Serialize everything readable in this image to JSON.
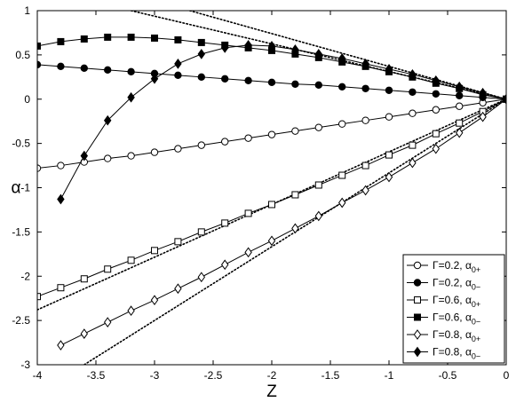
{
  "chart_data": {
    "type": "line",
    "xlabel": "Z",
    "ylabel": "α",
    "xlim": [
      -4,
      0
    ],
    "ylim": [
      -3,
      1
    ],
    "xticks": [
      -4,
      -3.5,
      -3,
      -2.5,
      -2,
      -1.5,
      -1,
      -0.5,
      0
    ],
    "yticks": [
      -3,
      -2.5,
      -2,
      -1.5,
      -1,
      -0.5,
      0,
      0.5,
      1
    ],
    "xtick_labels": [
      "-4",
      "-3.5",
      "-3",
      "-2.5",
      "-2",
      "-1.5",
      "-1",
      "-0.5",
      "0"
    ],
    "ytick_labels": [
      "-3",
      "-2.5",
      "-2",
      "-1.5",
      "-1",
      "-0.5",
      "0",
      "0.5",
      "1"
    ],
    "grid": false,
    "legend_position": "bottom-right",
    "series": [
      {
        "name": "Γ=0.2, α_{0+}",
        "legend_main": "Γ=0.2, α",
        "legend_sub": "0+",
        "marker": "circle-open",
        "x": [
          -4,
          -3.8,
          -3.6,
          -3.4,
          -3.2,
          -3.0,
          -2.8,
          -2.6,
          -2.4,
          -2.2,
          -2.0,
          -1.8,
          -1.6,
          -1.4,
          -1.2,
          -1.0,
          -0.8,
          -0.6,
          -0.4,
          -0.2,
          0
        ],
        "y": [
          -0.78,
          -0.75,
          -0.71,
          -0.67,
          -0.64,
          -0.6,
          -0.56,
          -0.52,
          -0.48,
          -0.44,
          -0.4,
          -0.36,
          -0.32,
          -0.28,
          -0.24,
          -0.2,
          -0.16,
          -0.12,
          -0.08,
          -0.04,
          0
        ]
      },
      {
        "name": "Γ=0.2, α_{0−}",
        "legend_main": "Γ=0.2, α",
        "legend_sub": "0−",
        "marker": "circle-filled",
        "x": [
          -4,
          -3.8,
          -3.6,
          -3.4,
          -3.2,
          -3.0,
          -2.8,
          -2.6,
          -2.4,
          -2.2,
          -2.0,
          -1.8,
          -1.6,
          -1.4,
          -1.2,
          -1.0,
          -0.8,
          -0.6,
          -0.4,
          -0.2,
          0
        ],
        "y": [
          0.39,
          0.37,
          0.35,
          0.33,
          0.31,
          0.29,
          0.27,
          0.25,
          0.23,
          0.21,
          0.19,
          0.17,
          0.16,
          0.14,
          0.12,
          0.1,
          0.08,
          0.06,
          0.04,
          0.02,
          0
        ]
      },
      {
        "name": "Γ=0.6, α_{0+}",
        "legend_main": "Γ=0.6, α",
        "legend_sub": "0+",
        "marker": "square-open",
        "x": [
          -4,
          -3.8,
          -3.6,
          -3.4,
          -3.2,
          -3.0,
          -2.8,
          -2.6,
          -2.4,
          -2.2,
          -2.0,
          -1.8,
          -1.6,
          -1.4,
          -1.2,
          -1.0,
          -0.8,
          -0.6,
          -0.4,
          -0.2,
          0
        ],
        "y": [
          -2.23,
          -2.13,
          -2.03,
          -1.92,
          -1.82,
          -1.71,
          -1.61,
          -1.5,
          -1.4,
          -1.29,
          -1.19,
          -1.08,
          -0.97,
          -0.86,
          -0.75,
          -0.63,
          -0.52,
          -0.39,
          -0.27,
          -0.14,
          0
        ]
      },
      {
        "name": "Γ=0.6, α_{0−}",
        "legend_main": "Γ=0.6, α",
        "legend_sub": "0−",
        "marker": "square-filled",
        "x": [
          -4,
          -3.8,
          -3.6,
          -3.4,
          -3.2,
          -3.0,
          -2.8,
          -2.6,
          -2.4,
          -2.2,
          -2.0,
          -1.8,
          -1.6,
          -1.4,
          -1.2,
          -1.0,
          -0.8,
          -0.6,
          -0.4,
          -0.2,
          0
        ],
        "y": [
          0.6,
          0.65,
          0.68,
          0.7,
          0.7,
          0.69,
          0.67,
          0.64,
          0.61,
          0.58,
          0.55,
          0.51,
          0.47,
          0.42,
          0.37,
          0.31,
          0.25,
          0.18,
          0.12,
          0.05,
          0
        ]
      },
      {
        "name": "Γ=0.8, α_{0+}",
        "legend_main": "Γ=0.8, α",
        "legend_sub": "0+",
        "marker": "diamond-open",
        "x": [
          -3.8,
          -3.6,
          -3.4,
          -3.2,
          -3.0,
          -2.8,
          -2.6,
          -2.4,
          -2.2,
          -2.0,
          -1.8,
          -1.6,
          -1.4,
          -1.2,
          -1.0,
          -0.8,
          -0.6,
          -0.4,
          -0.2,
          0
        ],
        "y": [
          -2.78,
          -2.65,
          -2.52,
          -2.39,
          -2.27,
          -2.14,
          -2.01,
          -1.87,
          -1.73,
          -1.6,
          -1.46,
          -1.32,
          -1.17,
          -1.03,
          -0.88,
          -0.72,
          -0.56,
          -0.38,
          -0.2,
          0
        ]
      },
      {
        "name": "Γ=0.8, α_{0−}",
        "legend_main": "Γ=0.8, α",
        "legend_sub": "0−",
        "marker": "diamond-filled",
        "x": [
          -3.8,
          -3.6,
          -3.4,
          -3.2,
          -3.0,
          -2.8,
          -2.6,
          -2.4,
          -2.2,
          -2.0,
          -1.8,
          -1.6,
          -1.4,
          -1.2,
          -1.0,
          -0.8,
          -0.6,
          -0.4,
          -0.2,
          0
        ],
        "y": [
          -1.13,
          -0.64,
          -0.24,
          0.02,
          0.23,
          0.4,
          0.51,
          0.58,
          0.61,
          0.6,
          0.56,
          0.51,
          0.46,
          0.4,
          0.34,
          0.28,
          0.21,
          0.14,
          0.07,
          0
        ]
      }
    ],
    "reference_lines": [
      {
        "style": "dotted",
        "x": [
          -3.2,
          0
        ],
        "y": [
          1.0,
          0
        ]
      },
      {
        "style": "dotted",
        "x": [
          -2.7,
          0
        ],
        "y": [
          1.0,
          0
        ]
      },
      {
        "style": "dotted",
        "x": [
          -4,
          0
        ],
        "y": [
          -2.38,
          0
        ]
      },
      {
        "style": "dotted",
        "x": [
          -3.6,
          0
        ],
        "y": [
          -3.0,
          0
        ]
      }
    ]
  }
}
